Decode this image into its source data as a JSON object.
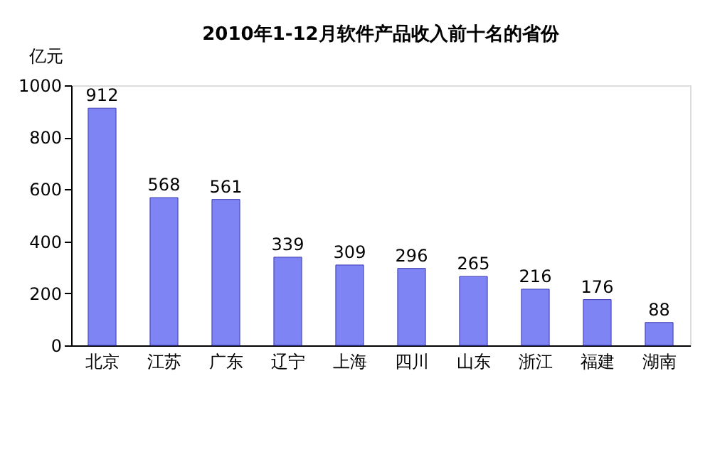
{
  "chart_data": {
    "type": "bar",
    "title": "2010年1-12月软件产品收入前十名的省份",
    "ylabel": "亿元",
    "categories": [
      "北京",
      "江苏",
      "广东",
      "辽宁",
      "上海",
      "四川",
      "山东",
      "浙江",
      "福建",
      "湖南"
    ],
    "values": [
      912,
      568,
      561,
      339,
      309,
      296,
      265,
      216,
      176,
      88
    ],
    "color": "#7f84f5",
    "ylim": [
      0,
      1000
    ],
    "yticks": [
      0,
      200,
      400,
      600,
      800,
      1000
    ],
    "grid": false,
    "data_labels": true
  }
}
